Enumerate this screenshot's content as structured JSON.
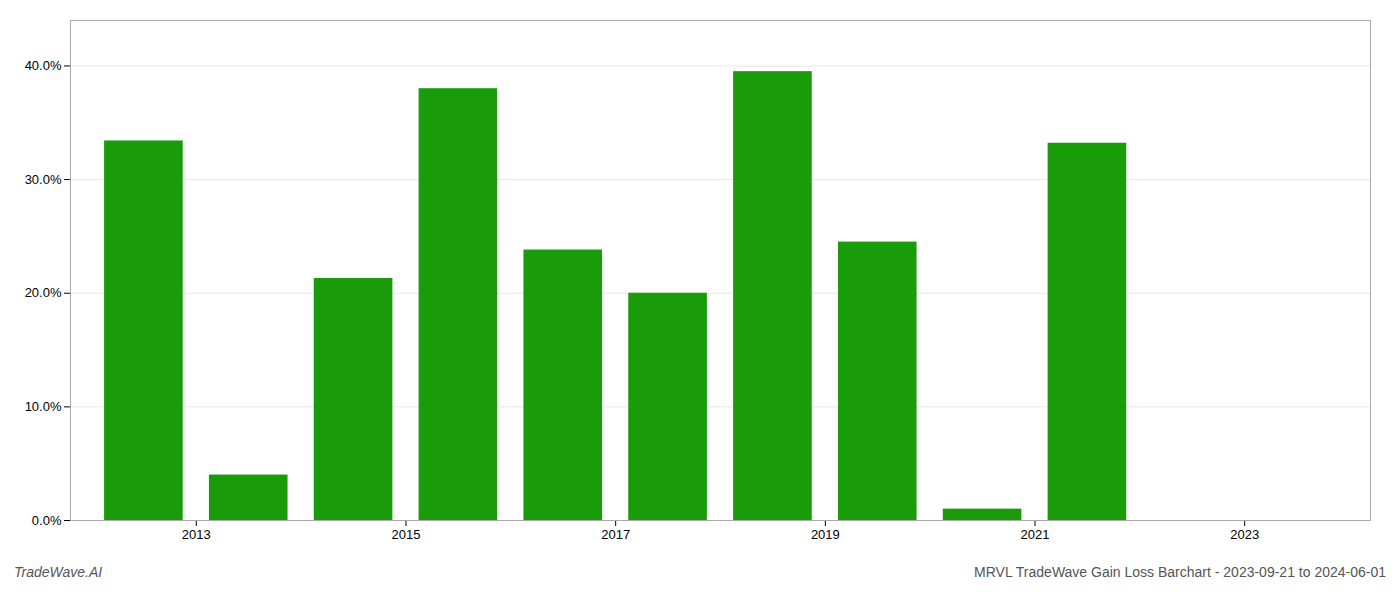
{
  "chart_data": {
    "type": "bar",
    "x": [
      2012.5,
      2013.5,
      2014.5,
      2015.5,
      2016.5,
      2017.5,
      2018.5,
      2019.5,
      2020.5,
      2021.5
    ],
    "values": [
      0.334,
      0.04,
      0.213,
      0.38,
      0.238,
      0.2,
      0.395,
      0.245,
      0.01,
      0.332
    ],
    "color": "#1a9c0a",
    "xlim": [
      2011.8,
      2024.2
    ],
    "xticks": [
      2013,
      2015,
      2017,
      2019,
      2021,
      2023
    ],
    "ylim": [
      0,
      0.44
    ],
    "yticks": [
      {
        "value": 0.0,
        "label": "0.0%"
      },
      {
        "value": 0.1,
        "label": "10.0%"
      },
      {
        "value": 0.2,
        "label": "20.0%"
      },
      {
        "value": 0.3,
        "label": "30.0%"
      },
      {
        "value": 0.4,
        "label": "40.0%"
      }
    ],
    "grid": true,
    "annotations": [
      "TradeWave.AI",
      "MRVL TradeWave Gain Loss Barchart - 2023-09-21 to 2024-06-01"
    ]
  }
}
